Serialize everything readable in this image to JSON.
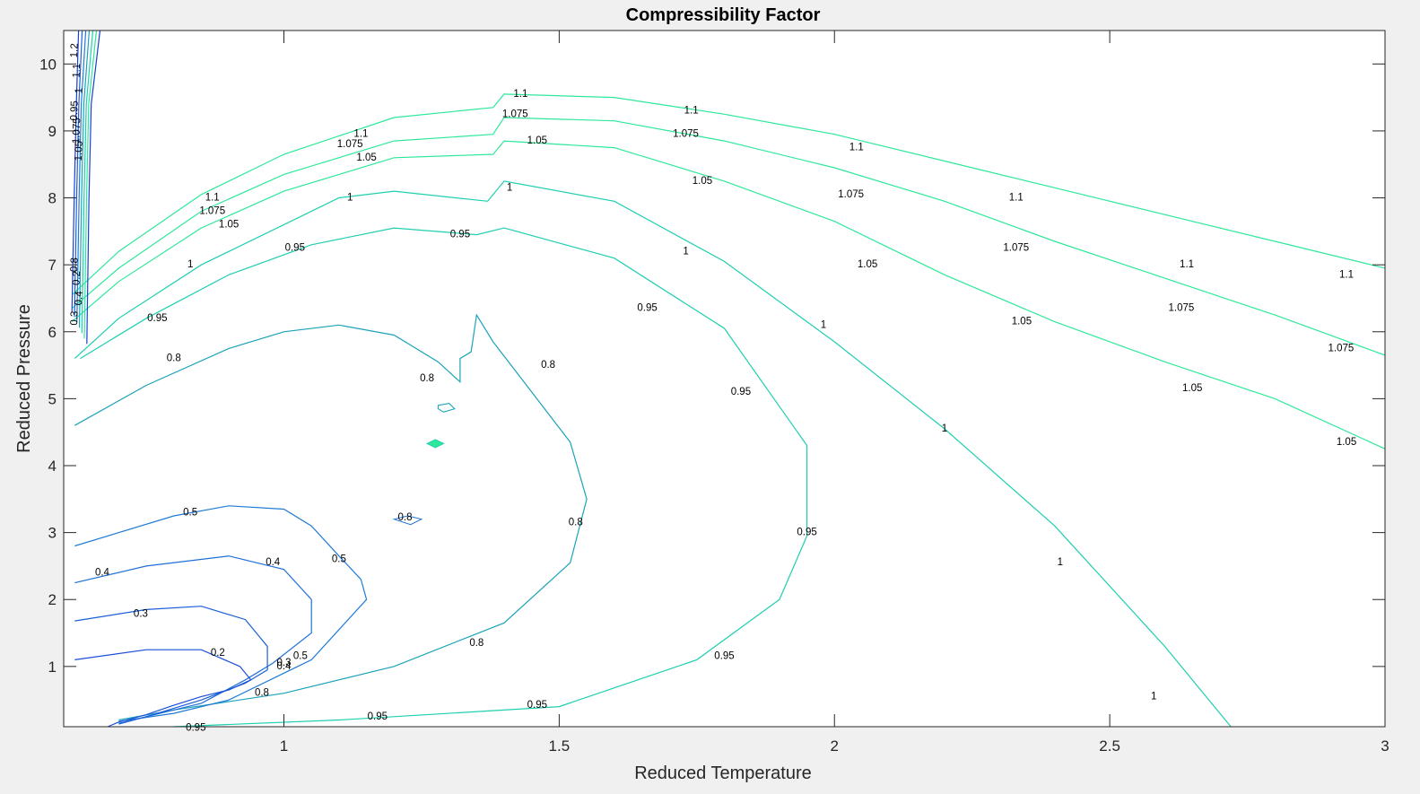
{
  "chart_data": {
    "type": "contour",
    "title": "Compressibility Factor",
    "xlabel": "Reduced Temperature",
    "ylabel": "Reduced Pressure",
    "xlim": [
      0.6,
      3.0
    ],
    "ylim": [
      0.1,
      10.5
    ],
    "xticks": [
      "1",
      "1.5",
      "2",
      "2.5",
      "3"
    ],
    "xtick_values": [
      1,
      1.5,
      2,
      2.5,
      3
    ],
    "yticks": [
      "1",
      "2",
      "3",
      "4",
      "5",
      "6",
      "7",
      "8",
      "9",
      "10"
    ],
    "ytick_values": [
      1,
      2,
      3,
      4,
      5,
      6,
      7,
      8,
      9,
      10
    ],
    "grid": false,
    "colors": {
      "low": "#1a3fd1",
      "mid": "#1ba3b8",
      "high": "#2ee89a"
    },
    "levels": [
      {
        "value": 1.1,
        "label": "1.1",
        "color": "#2ee89a",
        "points": [
          [
            0.615,
            6.55
          ],
          [
            0.7,
            7.2
          ],
          [
            0.85,
            8.05
          ],
          [
            1,
            8.65
          ],
          [
            1.2,
            9.2
          ],
          [
            1.38,
            9.35
          ],
          [
            1.4,
            9.55
          ],
          [
            1.6,
            9.5
          ],
          [
            1.8,
            9.25
          ],
          [
            2.0,
            8.95
          ],
          [
            2.2,
            8.55
          ],
          [
            2.4,
            8.15
          ],
          [
            2.6,
            7.75
          ],
          [
            2.8,
            7.35
          ],
          [
            3.0,
            6.95
          ]
        ],
        "labels": [
          [
            0.87,
            8.0
          ],
          [
            1.14,
            8.95
          ],
          [
            1.43,
            9.55
          ],
          [
            1.74,
            9.3
          ],
          [
            2.04,
            8.75
          ],
          [
            2.33,
            8.0
          ],
          [
            2.64,
            7.0
          ],
          [
            2.93,
            6.85
          ]
        ]
      },
      {
        "value": 1.075,
        "label": "1.075",
        "color": "#2ee89a",
        "points": [
          [
            0.615,
            6.35
          ],
          [
            0.7,
            6.95
          ],
          [
            0.85,
            7.8
          ],
          [
            1,
            8.35
          ],
          [
            1.2,
            8.85
          ],
          [
            1.38,
            8.95
          ],
          [
            1.4,
            9.2
          ],
          [
            1.6,
            9.15
          ],
          [
            1.8,
            8.85
          ],
          [
            2.0,
            8.45
          ],
          [
            2.2,
            7.95
          ],
          [
            2.4,
            7.35
          ],
          [
            2.6,
            6.8
          ],
          [
            2.8,
            6.25
          ],
          [
            3.0,
            5.65
          ]
        ],
        "labels": [
          [
            0.87,
            7.8
          ],
          [
            1.12,
            8.8
          ],
          [
            1.42,
            9.25
          ],
          [
            1.73,
            8.95
          ],
          [
            2.03,
            8.05
          ],
          [
            2.33,
            7.25
          ],
          [
            2.63,
            6.35
          ],
          [
            2.92,
            5.75
          ]
        ]
      },
      {
        "value": 1.05,
        "label": "1.05",
        "color": "#2ee89a",
        "points": [
          [
            0.615,
            6.15
          ],
          [
            0.7,
            6.75
          ],
          [
            0.85,
            7.55
          ],
          [
            1,
            8.1
          ],
          [
            1.2,
            8.6
          ],
          [
            1.38,
            8.65
          ],
          [
            1.4,
            8.85
          ],
          [
            1.6,
            8.75
          ],
          [
            1.8,
            8.25
          ],
          [
            2.0,
            7.65
          ],
          [
            2.2,
            6.85
          ],
          [
            2.4,
            6.15
          ],
          [
            2.6,
            5.55
          ],
          [
            2.8,
            5.0
          ],
          [
            3.0,
            4.25
          ]
        ],
        "labels": [
          [
            0.9,
            7.6
          ],
          [
            1.15,
            8.6
          ],
          [
            1.46,
            8.85
          ],
          [
            1.76,
            8.25
          ],
          [
            2.06,
            7.0
          ],
          [
            2.34,
            6.15
          ],
          [
            2.65,
            5.15
          ],
          [
            2.93,
            4.35
          ]
        ]
      },
      {
        "value": 1.0,
        "label": "1",
        "color": "#1ecfb0",
        "points": [
          [
            0.62,
            5.6
          ],
          [
            0.7,
            6.2
          ],
          [
            0.85,
            7.0
          ],
          [
            1,
            7.6
          ],
          [
            1.1,
            8.0
          ],
          [
            1.2,
            8.1
          ],
          [
            1.37,
            7.95
          ],
          [
            1.4,
            8.25
          ],
          [
            1.6,
            7.95
          ],
          [
            1.8,
            7.05
          ],
          [
            2.0,
            5.85
          ],
          [
            2.2,
            4.55
          ],
          [
            2.4,
            3.1
          ],
          [
            2.6,
            1.3
          ],
          [
            2.72,
            0.1
          ]
        ],
        "labels": [
          [
            0.83,
            7.0
          ],
          [
            1.12,
            8.0
          ],
          [
            1.41,
            8.15
          ],
          [
            1.73,
            7.2
          ],
          [
            1.98,
            6.1
          ],
          [
            2.2,
            4.55
          ],
          [
            2.41,
            2.55
          ],
          [
            2.58,
            0.55
          ]
        ]
      },
      {
        "value": 0.95,
        "label": "0.95",
        "color": "#1ecfb0",
        "points": [
          [
            0.63,
            5.6
          ],
          [
            0.75,
            6.2
          ],
          [
            0.9,
            6.85
          ],
          [
            1.05,
            7.3
          ],
          [
            1.2,
            7.55
          ],
          [
            1.35,
            7.45
          ],
          [
            1.4,
            7.55
          ],
          [
            1.6,
            7.1
          ],
          [
            1.8,
            6.05
          ],
          [
            1.95,
            4.3
          ],
          [
            1.95,
            2.95
          ],
          [
            1.9,
            2.0
          ],
          [
            1.75,
            1.1
          ],
          [
            1.5,
            0.4
          ],
          [
            1.1,
            0.2
          ],
          [
            0.8,
            0.1
          ]
        ],
        "labels": [
          [
            0.77,
            6.2
          ],
          [
            1.02,
            7.25
          ],
          [
            1.32,
            7.45
          ],
          [
            1.66,
            6.35
          ],
          [
            1.83,
            5.1
          ],
          [
            1.95,
            3.0
          ],
          [
            1.8,
            1.15
          ],
          [
            1.46,
            0.42
          ],
          [
            1.17,
            0.25
          ],
          [
            0.84,
            0.08
          ]
        ]
      },
      {
        "value": 0.8,
        "label": "0.8",
        "color": "#1ba3b8",
        "points": [
          [
            0.62,
            4.6
          ],
          [
            0.75,
            5.2
          ],
          [
            0.9,
            5.75
          ],
          [
            1.0,
            6.0
          ],
          [
            1.1,
            6.1
          ],
          [
            1.2,
            5.95
          ],
          [
            1.28,
            5.55
          ],
          [
            1.32,
            5.25
          ],
          [
            1.32,
            5.6
          ],
          [
            1.34,
            5.7
          ],
          [
            1.35,
            6.25
          ],
          [
            1.38,
            5.85
          ],
          [
            1.45,
            5.1
          ],
          [
            1.52,
            4.35
          ],
          [
            1.55,
            3.5
          ],
          [
            1.52,
            2.55
          ],
          [
            1.4,
            1.65
          ],
          [
            1.2,
            1.0
          ],
          [
            1.0,
            0.6
          ],
          [
            0.8,
            0.35
          ],
          [
            0.7,
            0.2
          ]
        ],
        "labels": [
          [
            0.8,
            5.6
          ],
          [
            1.26,
            5.3
          ],
          [
            1.48,
            5.5
          ],
          [
            1.53,
            3.15
          ],
          [
            1.35,
            1.35
          ],
          [
            0.96,
            0.6
          ]
        ]
      },
      {
        "value": 0.5,
        "label": "0.5",
        "color": "#1f7bd6",
        "points": [
          [
            0.62,
            2.8
          ],
          [
            0.8,
            3.25
          ],
          [
            0.9,
            3.4
          ],
          [
            1.0,
            3.35
          ],
          [
            1.05,
            3.1
          ],
          [
            1.1,
            2.65
          ],
          [
            1.14,
            2.3
          ],
          [
            1.15,
            2.0
          ],
          [
            1.1,
            1.55
          ],
          [
            1.05,
            1.1
          ],
          [
            1.0,
            0.9
          ],
          [
            0.9,
            0.5
          ],
          [
            0.8,
            0.3
          ],
          [
            0.7,
            0.18
          ]
        ],
        "labels": [
          [
            0.83,
            3.3
          ],
          [
            1.1,
            2.6
          ],
          [
            1.03,
            1.15
          ]
        ]
      },
      {
        "value": 0.4,
        "label": "0.4",
        "color": "#1f6fd6",
        "points": [
          [
            0.62,
            2.25
          ],
          [
            0.75,
            2.5
          ],
          [
            0.9,
            2.65
          ],
          [
            1.0,
            2.45
          ],
          [
            1.05,
            2.0
          ],
          [
            1.05,
            1.5
          ],
          [
            0.98,
            1.05
          ],
          [
            0.93,
            0.8
          ],
          [
            0.85,
            0.45
          ],
          [
            0.75,
            0.25
          ],
          [
            0.7,
            0.15
          ]
        ],
        "labels": [
          [
            0.67,
            2.4
          ],
          [
            0.98,
            2.55
          ],
          [
            1.0,
            1.0
          ]
        ]
      },
      {
        "value": 0.3,
        "label": "0.3",
        "color": "#1a5ed6",
        "points": [
          [
            0.62,
            1.68
          ],
          [
            0.75,
            1.85
          ],
          [
            0.85,
            1.9
          ],
          [
            0.93,
            1.7
          ],
          [
            0.97,
            1.3
          ],
          [
            0.97,
            0.95
          ],
          [
            0.93,
            0.75
          ],
          [
            0.85,
            0.5
          ],
          [
            0.75,
            0.25
          ],
          [
            0.7,
            0.14
          ]
        ],
        "labels": [
          [
            0.74,
            1.78
          ],
          [
            1.0,
            1.05
          ]
        ]
      },
      {
        "value": 0.2,
        "label": "0.2",
        "color": "#1a4fd6",
        "points": [
          [
            0.62,
            1.1
          ],
          [
            0.75,
            1.25
          ],
          [
            0.85,
            1.25
          ],
          [
            0.92,
            1.0
          ],
          [
            0.94,
            0.8
          ],
          [
            0.9,
            0.65
          ],
          [
            0.85,
            0.55
          ],
          [
            0.8,
            0.42
          ],
          [
            0.75,
            0.28
          ],
          [
            0.7,
            0.17
          ],
          [
            0.68,
            0.1
          ]
        ],
        "labels": [
          [
            0.88,
            1.2
          ]
        ]
      }
    ],
    "wall": {
      "labels": [
        "1.2",
        "1.1",
        "1",
        "0.95",
        "1.075",
        "1.05",
        "0.8",
        "0.2",
        "0.4",
        "0.3"
      ]
    },
    "small_label": "0.8"
  }
}
